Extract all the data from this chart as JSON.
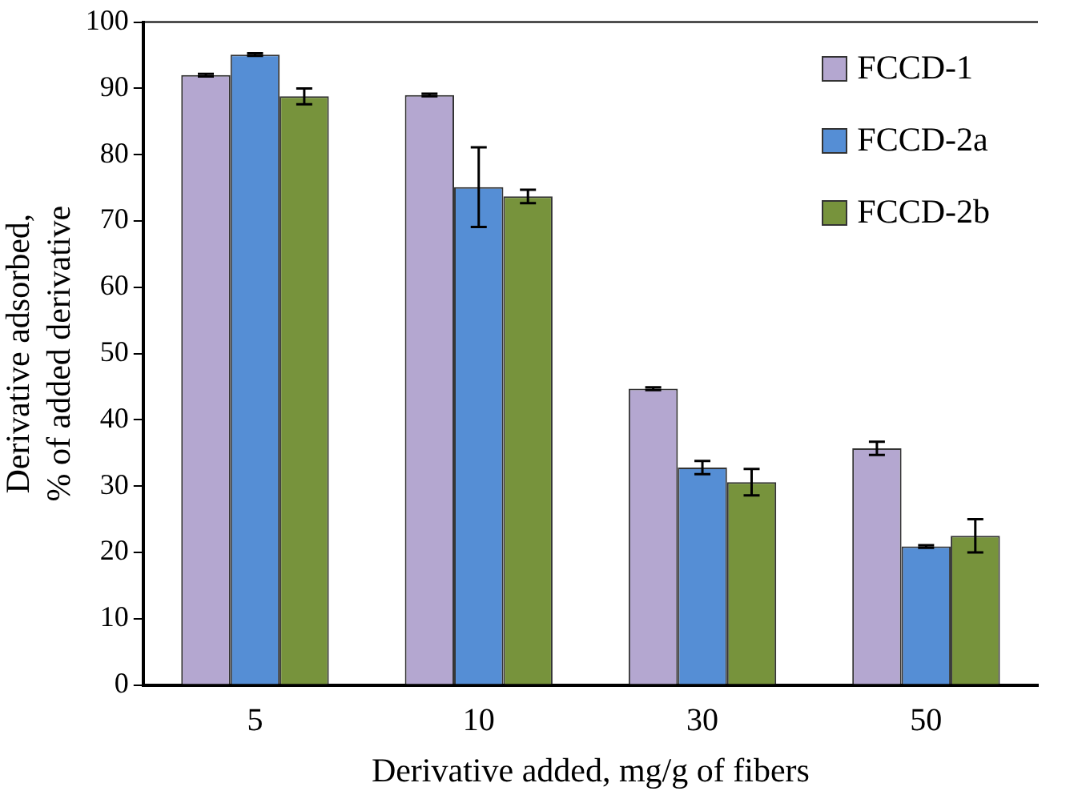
{
  "chart_data": {
    "type": "bar",
    "xlabel": "Derivative added, mg/g of fibers",
    "ylabel": "Derivative adsorbed,\n% of added derivative",
    "categories": [
      "5",
      "10",
      "30",
      "50"
    ],
    "series": [
      {
        "name": "FCCD-1",
        "color": "#b4a7d0",
        "values": [
          92.0,
          89.0,
          44.7,
          35.7
        ],
        "errors": [
          0.2,
          0.2,
          0.2,
          1
        ]
      },
      {
        "name": "FCCD-2a",
        "color": "#558ed5",
        "values": [
          95.1,
          75.1,
          32.8,
          20.9
        ],
        "errors": [
          0.2,
          6,
          1,
          0.2
        ]
      },
      {
        "name": "FCCD-2b",
        "color": "#77933c",
        "values": [
          88.8,
          73.7,
          30.6,
          22.5
        ],
        "errors": [
          1.2,
          1,
          2,
          2.5
        ]
      }
    ],
    "ylim": [
      0,
      100
    ],
    "yticks": [
      0,
      10,
      20,
      30,
      40,
      50,
      60,
      70,
      80,
      90,
      100
    ],
    "grid": false,
    "legend": "top right"
  }
}
